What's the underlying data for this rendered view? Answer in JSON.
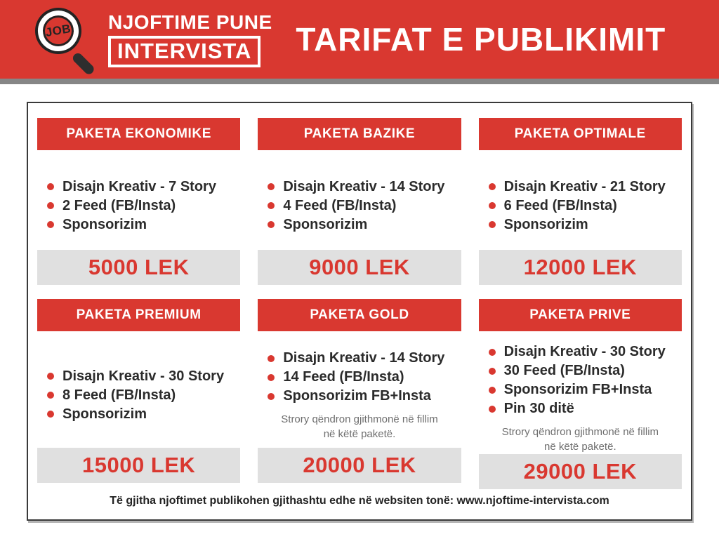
{
  "header": {
    "logo": {
      "badge_text": "JOB",
      "line1": "NJOFTIME PUNE",
      "line2": "INTERVISTA"
    },
    "title": "TARIFAT E PUBLIKIMIT"
  },
  "packages": [
    {
      "name": "PAKETA EKONOMIKE",
      "features": [
        "Disajn Kreativ - 7 Story",
        "2 Feed (FB/Insta)",
        "Sponsorizim"
      ],
      "price": "5000 LEK"
    },
    {
      "name": "PAKETA BAZIKE",
      "features": [
        "Disajn Kreativ - 14 Story",
        "4 Feed (FB/Insta)",
        "Sponsorizim"
      ],
      "price": "9000 LEK"
    },
    {
      "name": "PAKETA OPTIMALE",
      "features": [
        "Disajn Kreativ - 21 Story",
        "6 Feed (FB/Insta)",
        "Sponsorizim"
      ],
      "price": "12000 LEK"
    },
    {
      "name": "PAKETA PREMIUM",
      "features": [
        "Disajn Kreativ - 30 Story",
        "8 Feed (FB/Insta)",
        "Sponsorizim"
      ],
      "price": "15000 LEK"
    },
    {
      "name": "PAKETA GOLD",
      "features": [
        "Disajn Kreativ - 14 Story",
        "14 Feed (FB/Insta)",
        "Sponsorizim FB+Insta"
      ],
      "note_line1": "Strory qëndron gjithmonë në fillim",
      "note_line2": "në këtë paketë.",
      "price": "20000 LEK"
    },
    {
      "name": "PAKETA PRIVE",
      "features": [
        "Disajn Kreativ - 30 Story",
        "30 Feed (FB/Insta)",
        "Sponsorizim FB+Insta",
        "Pin 30 ditë"
      ],
      "note_line1": "Strory qëndron gjithmonë në fillim",
      "note_line2": "në këtë paketë.",
      "price": "29000 LEK"
    }
  ],
  "footer": {
    "text": "Të gjitha njoftimet publikohen gjithashtu edhe në websiten tonë: www.njoftime-intervista.com"
  },
  "colors": {
    "brand_red": "#d93830",
    "price_bar_gray": "#e0e0e0",
    "divider_gray": "#868686",
    "text_dark": "#2b2b2b",
    "note_gray": "#6e6e6e"
  }
}
